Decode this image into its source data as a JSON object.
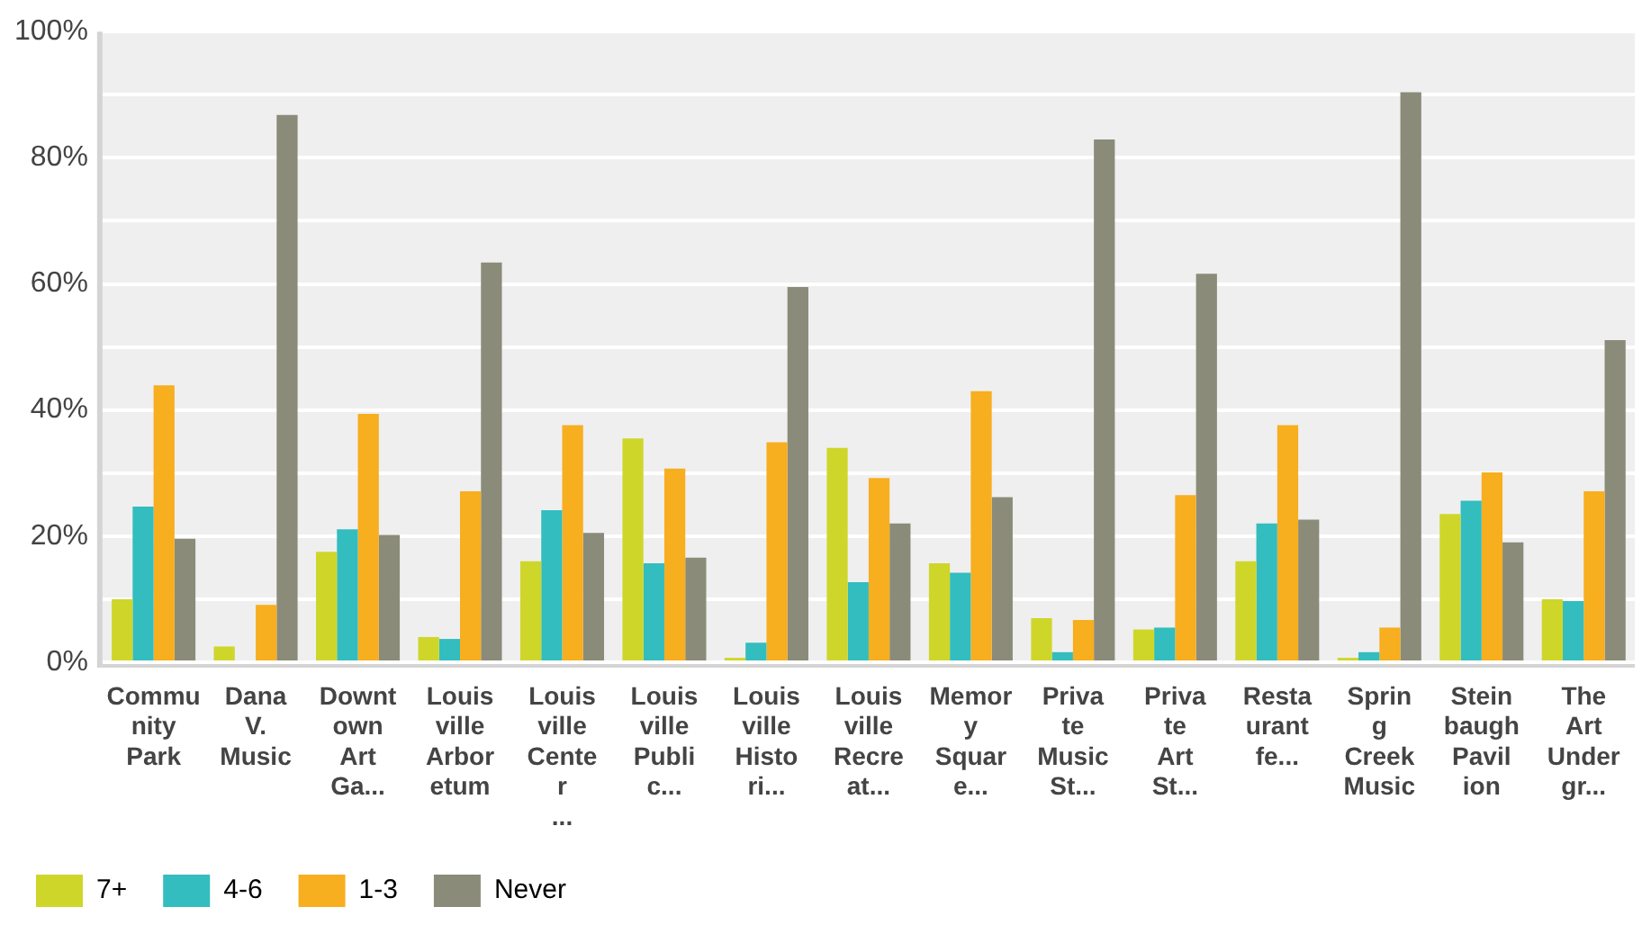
{
  "chart_data": {
    "type": "bar",
    "categories": [
      "Community Park",
      "Dana V. Music",
      "Downtown Art Ga...",
      "Louisville Arboretum",
      "Louisville Center ...",
      "Louisville Public...",
      "Louisville Histori...",
      "Louisville Recreat...",
      "Memory Square...",
      "Private Music St...",
      "Private Art St...",
      "Restaurant fe...",
      "Spring Creek Music",
      "Steinbaugh Pavilion",
      "The Art Undergr..."
    ],
    "series": [
      {
        "name": "7+",
        "color": "#cfd62a",
        "values": [
          10,
          2.5,
          17.5,
          4,
          16,
          35.5,
          0.7,
          34,
          15.7,
          7,
          5.2,
          16,
          0.7,
          23.5,
          10
        ]
      },
      {
        "name": "4-6",
        "color": "#33bdbf",
        "values": [
          24.7,
          0,
          21.1,
          3.7,
          24.1,
          15.7,
          3.1,
          12.7,
          14.2,
          1.6,
          5.5,
          22,
          1.6,
          25.6,
          9.7
        ]
      },
      {
        "name": "1-3",
        "color": "#f7ae1f",
        "values": [
          43.9,
          9.1,
          39.4,
          27.1,
          37.6,
          30.7,
          34.9,
          29.2,
          43,
          6.7,
          26.5,
          37.6,
          5.5,
          30.1,
          27.1
        ]
      },
      {
        "name": "Never",
        "color": "#8b8b7a",
        "values": [
          19.6,
          86.8,
          20.2,
          63.4,
          20.5,
          16.6,
          59.5,
          22,
          26.2,
          82.9,
          61.6,
          22.6,
          90.4,
          19,
          51.1
        ]
      }
    ],
    "ylim": [
      0,
      100
    ],
    "yticks": [
      {
        "value": 0,
        "label": "0%"
      },
      {
        "value": 10,
        "label": null
      },
      {
        "value": 20,
        "label": "20%"
      },
      {
        "value": 30,
        "label": null
      },
      {
        "value": 40,
        "label": "40%"
      },
      {
        "value": 50,
        "label": null
      },
      {
        "value": 60,
        "label": "60%"
      },
      {
        "value": 70,
        "label": null
      },
      {
        "value": 80,
        "label": "80%"
      },
      {
        "value": 90,
        "label": null
      },
      {
        "value": 100,
        "label": "100%"
      }
    ],
    "grid": "y",
    "legend": "bottom left"
  }
}
